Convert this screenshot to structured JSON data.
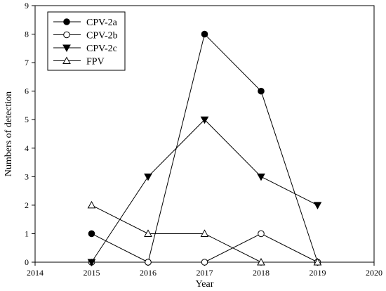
{
  "chart_data": {
    "type": "line",
    "xlabel": "Year",
    "ylabel": "Numbers of detection",
    "xlim": [
      2014,
      2020
    ],
    "ylim": [
      0,
      9
    ],
    "xticks": [
      2014,
      2015,
      2016,
      2017,
      2018,
      2019,
      2020
    ],
    "yticks": [
      0,
      1,
      2,
      3,
      4,
      5,
      6,
      7,
      8,
      9
    ],
    "grid": false,
    "legend_position": "top-left",
    "series": [
      {
        "name": "CPV-2a",
        "marker": "circle-filled",
        "x": [
          2015,
          2016,
          2017,
          2018,
          2019
        ],
        "y": [
          1,
          0,
          8,
          6,
          0
        ]
      },
      {
        "name": "CPV-2b",
        "marker": "circle-open",
        "x": [
          2015,
          2016,
          2017,
          2018,
          2019
        ],
        "y": [
          0,
          0,
          0,
          1,
          0
        ]
      },
      {
        "name": "CPV-2c",
        "marker": "triangle-down-filled",
        "x": [
          2015,
          2016,
          2017,
          2018,
          2019
        ],
        "y": [
          0,
          3,
          5,
          3,
          2
        ]
      },
      {
        "name": "FPV",
        "marker": "triangle-up-open",
        "x": [
          2015,
          2016,
          2017,
          2018,
          2019
        ],
        "y": [
          2,
          1,
          1,
          0,
          0
        ]
      }
    ]
  }
}
